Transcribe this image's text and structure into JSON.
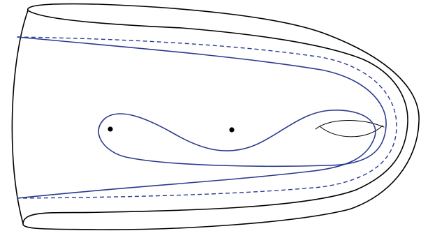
{
  "diagram": {
    "colors": {
      "surface_outline": "#000000",
      "curve": "#2b3a8f",
      "marked_point": "#000000",
      "background": "#ffffff"
    },
    "elements": {
      "surface_outline": {
        "style": "solid"
      },
      "handle": {
        "style": "solid"
      },
      "solid_curve": {
        "style": "solid"
      },
      "dashed_curve": {
        "style": "dashed"
      },
      "marked_points": {
        "count": 2
      }
    }
  }
}
